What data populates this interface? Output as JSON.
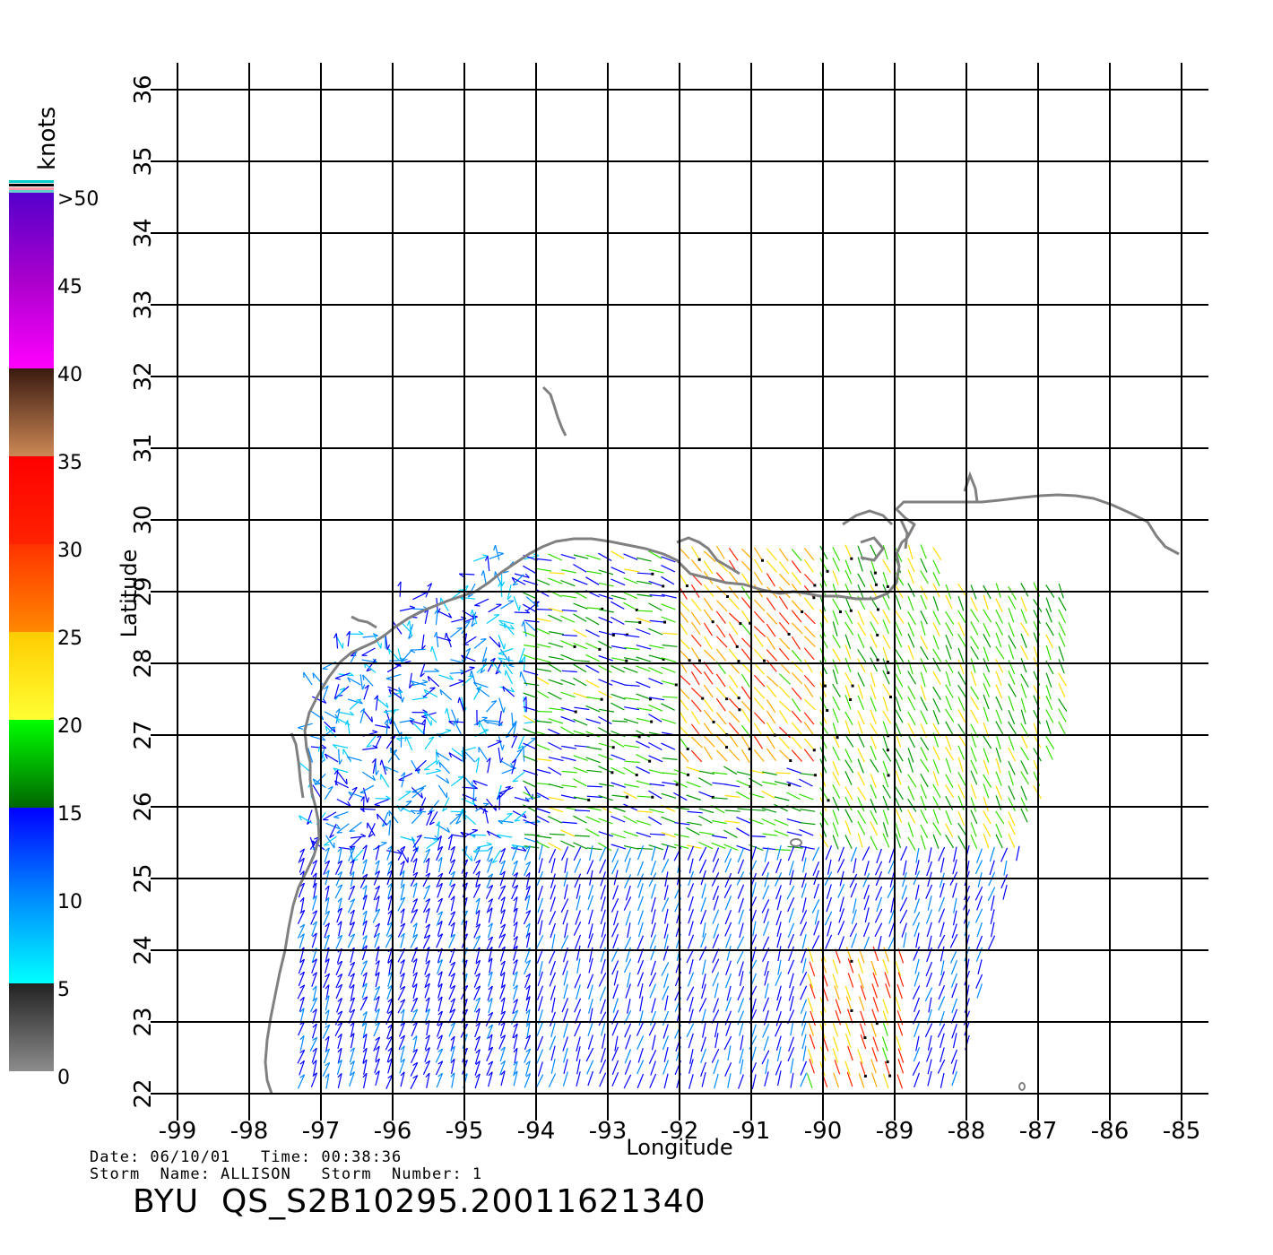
{
  "legend": {
    "unit": "knots",
    "labels": [
      ">50",
      "45",
      "40",
      "35",
      "30",
      "25",
      "20",
      "15",
      "10",
      "5",
      "0"
    ],
    "scale_colors": [
      "#8c8c8c",
      "#222222",
      "#00ffff",
      "#0000ff",
      "#006600",
      "#00ff00",
      "#ffff33",
      "#ffaa00",
      "#ff2200",
      "#ffdd00",
      "#cc8855",
      "#3a1a10",
      "#ff00ff",
      "#aa00cc",
      "#5500cc"
    ]
  },
  "axes": {
    "xlabel": "Longitude",
    "ylabel": "Latitude",
    "x_ticks": [
      "-99",
      "-98",
      "-97",
      "-96",
      "-95",
      "-94",
      "-93",
      "-92",
      "-91",
      "-90",
      "-89",
      "-88",
      "-87",
      "-86",
      "-85"
    ],
    "y_ticks": [
      "22",
      "23",
      "24",
      "25",
      "26",
      "27",
      "28",
      "29",
      "30",
      "31",
      "32",
      "33",
      "34",
      "35",
      "36"
    ],
    "x_range": [
      -99,
      -85
    ],
    "y_range": [
      22,
      36
    ]
  },
  "info": {
    "date_line": "Date: 06/10/01   Time: 00:38:36",
    "storm_line": "Storm  Name: ALLISON   Storm  Number: 1",
    "product_id": "BYU  QS_S2B10295.20011621340"
  },
  "colors": {
    "grid": "#000000",
    "coast": "#808080"
  }
}
